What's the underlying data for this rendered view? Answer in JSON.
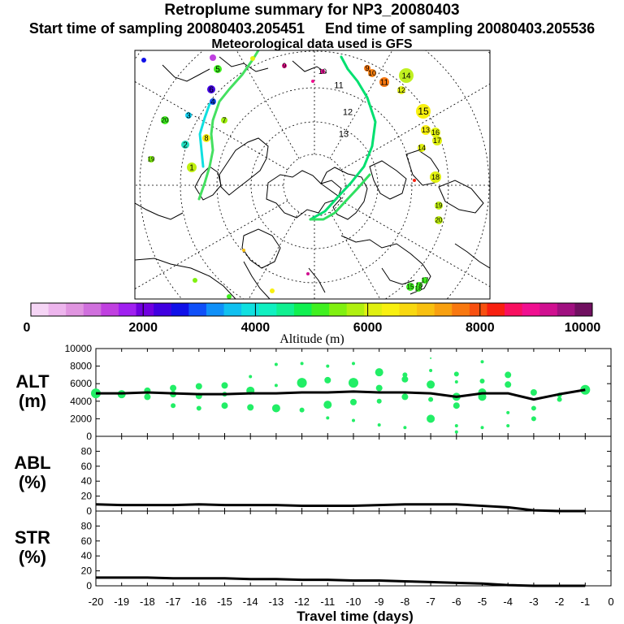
{
  "header": {
    "title": "Retroplume summary for NP3_20080403",
    "start_time": "Start time of sampling 20080403.205451",
    "end_time": "End time of sampling 20080403.205536",
    "met_data": "Meteorological data used is GFS"
  },
  "map": {
    "type": "north-polar-stereographic",
    "day_labels": [
      {
        "label": "1"
      },
      {
        "label": "2"
      },
      {
        "label": "3"
      },
      {
        "label": "4"
      },
      {
        "label": "5"
      },
      {
        "label": "6"
      },
      {
        "label": "7"
      },
      {
        "label": "8"
      },
      {
        "label": "9"
      },
      {
        "label": "10"
      },
      {
        "label": "11"
      },
      {
        "label": "12"
      },
      {
        "label": "13"
      },
      {
        "label": "14"
      },
      {
        "label": "15"
      },
      {
        "label": "16"
      },
      {
        "label": "17"
      },
      {
        "label": "18"
      },
      {
        "label": "19"
      },
      {
        "label": "20"
      },
      {
        "label": "9"
      },
      {
        "label": "10"
      },
      {
        "label": "11"
      },
      {
        "label": "12"
      },
      {
        "label": "13"
      },
      {
        "label": "14"
      },
      {
        "label": "15"
      },
      {
        "label": "16"
      },
      {
        "label": "17"
      },
      {
        "label": "18"
      },
      {
        "label": "19"
      },
      {
        "label": "20"
      }
    ],
    "plume_colors": {
      "track": "#44e060",
      "center_track": "#00e070"
    }
  },
  "colorbar": {
    "label": "Altitude (m)",
    "ticks": [
      "0",
      "2000",
      "4000",
      "6000",
      "8000",
      "10000"
    ],
    "min": 0,
    "max": 10000,
    "colors": [
      "#f5d5f5",
      "#edb5ed",
      "#e095e0",
      "#d070dd",
      "#c040e0",
      "#a020f0",
      "#7000e0",
      "#4000e0",
      "#1010e8",
      "#1050f8",
      "#1090f8",
      "#10c0f0",
      "#10e0e0",
      "#10f0c0",
      "#10f090",
      "#10f050",
      "#40f020",
      "#80f010",
      "#b0f010",
      "#e0f010",
      "#f8f010",
      "#f8d810",
      "#f8c010",
      "#f8a010",
      "#f87810",
      "#f85010",
      "#f82010",
      "#f81060",
      "#f01090",
      "#d01090",
      "#a01080",
      "#701060"
    ]
  },
  "chart_data": [
    {
      "type": "line",
      "panel": "altitude",
      "ylabel": "ALT\n(m)",
      "ylabel_lines": [
        "ALT",
        "(m)"
      ],
      "yticks": [
        "0",
        "2000",
        "4000",
        "6000",
        "8000",
        "10000"
      ],
      "ylim": [
        0,
        10000
      ],
      "xlim": [
        -20,
        0
      ],
      "x": [
        -20,
        -19,
        -18,
        -17,
        -16,
        -15,
        -14,
        -13,
        -12,
        -11,
        -10,
        -9,
        -8,
        -7,
        -6,
        -5,
        -4,
        -3,
        -2,
        -1
      ],
      "series": [
        {
          "name": "mean altitude",
          "values": [
            4900,
            4900,
            5000,
            4900,
            4800,
            4800,
            4900,
            4900,
            5000,
            5000,
            5100,
            5000,
            5000,
            4900,
            4500,
            4900,
            4900,
            4200,
            4800,
            5300
          ]
        }
      ],
      "scatter": [
        {
          "x": -20,
          "y": 4900,
          "s": 6
        },
        {
          "x": -19,
          "y": 4800,
          "s": 5
        },
        {
          "x": -18,
          "y": 5200,
          "s": 4
        },
        {
          "x": -18,
          "y": 4500,
          "s": 4
        },
        {
          "x": -17,
          "y": 5500,
          "s": 4
        },
        {
          "x": -17,
          "y": 4800,
          "s": 4
        },
        {
          "x": -17,
          "y": 3500,
          "s": 3
        },
        {
          "x": -16,
          "y": 5700,
          "s": 4
        },
        {
          "x": -16,
          "y": 4600,
          "s": 4
        },
        {
          "x": -16,
          "y": 3200,
          "s": 3
        },
        {
          "x": -15,
          "y": 5800,
          "s": 4
        },
        {
          "x": -15,
          "y": 4800,
          "s": 3
        },
        {
          "x": -15,
          "y": 3500,
          "s": 4
        },
        {
          "x": -14,
          "y": 6800,
          "s": 2
        },
        {
          "x": -14,
          "y": 5200,
          "s": 5
        },
        {
          "x": -14,
          "y": 3300,
          "s": 4
        },
        {
          "x": -13,
          "y": 8200,
          "s": 2
        },
        {
          "x": -13,
          "y": 5800,
          "s": 2
        },
        {
          "x": -13,
          "y": 3200,
          "s": 5
        },
        {
          "x": -12,
          "y": 8300,
          "s": 2
        },
        {
          "x": -12,
          "y": 6100,
          "s": 6
        },
        {
          "x": -12,
          "y": 3000,
          "s": 3
        },
        {
          "x": -11,
          "y": 8000,
          "s": 2
        },
        {
          "x": -11,
          "y": 6400,
          "s": 4
        },
        {
          "x": -11,
          "y": 3600,
          "s": 5
        },
        {
          "x": -11,
          "y": 2100,
          "s": 2
        },
        {
          "x": -10,
          "y": 8300,
          "s": 2
        },
        {
          "x": -10,
          "y": 6100,
          "s": 6
        },
        {
          "x": -10,
          "y": 3900,
          "s": 4
        },
        {
          "x": -10,
          "y": 1800,
          "s": 2
        },
        {
          "x": -9,
          "y": 7300,
          "s": 5
        },
        {
          "x": -9,
          "y": 5500,
          "s": 4
        },
        {
          "x": -9,
          "y": 4000,
          "s": 3
        },
        {
          "x": -9,
          "y": 1300,
          "s": 2
        },
        {
          "x": -8,
          "y": 7000,
          "s": 3
        },
        {
          "x": -8,
          "y": 6500,
          "s": 4
        },
        {
          "x": -8,
          "y": 4500,
          "s": 4
        },
        {
          "x": -8,
          "y": 1000,
          "s": 2
        },
        {
          "x": -7,
          "y": 8900,
          "s": 1
        },
        {
          "x": -7,
          "y": 7500,
          "s": 2
        },
        {
          "x": -7,
          "y": 5900,
          "s": 5
        },
        {
          "x": -7,
          "y": 4200,
          "s": 3
        },
        {
          "x": -7,
          "y": 2000,
          "s": 5
        },
        {
          "x": -6,
          "y": 7100,
          "s": 3
        },
        {
          "x": -6,
          "y": 6200,
          "s": 2
        },
        {
          "x": -6,
          "y": 4500,
          "s": 5
        },
        {
          "x": -6,
          "y": 3500,
          "s": 4
        },
        {
          "x": -6,
          "y": 1200,
          "s": 2
        },
        {
          "x": -6,
          "y": 500,
          "s": 2
        },
        {
          "x": -5,
          "y": 8500,
          "s": 2
        },
        {
          "x": -5,
          "y": 6300,
          "s": 3
        },
        {
          "x": -5,
          "y": 5000,
          "s": 5
        },
        {
          "x": -5,
          "y": 4500,
          "s": 5
        },
        {
          "x": -5,
          "y": 1000,
          "s": 2
        },
        {
          "x": -4,
          "y": 7000,
          "s": 4
        },
        {
          "x": -4,
          "y": 5900,
          "s": 4
        },
        {
          "x": -4,
          "y": 2700,
          "s": 2
        },
        {
          "x": -4,
          "y": 1200,
          "s": 2
        },
        {
          "x": -3,
          "y": 5000,
          "s": 4
        },
        {
          "x": -3,
          "y": 3200,
          "s": 3
        },
        {
          "x": -3,
          "y": 2000,
          "s": 3
        },
        {
          "x": -2,
          "y": 4700,
          "s": 3
        },
        {
          "x": -2,
          "y": 4200,
          "s": 3
        },
        {
          "x": -1,
          "y": 5300,
          "s": 6
        }
      ]
    },
    {
      "type": "line",
      "panel": "abl",
      "ylabel": "ABL\n(%)",
      "ylabel_lines": [
        "ABL",
        "(%)"
      ],
      "yticks": [
        "0",
        "20",
        "40",
        "60",
        "80"
      ],
      "ylim": [
        0,
        100
      ],
      "xlim": [
        -20,
        0
      ],
      "x": [
        -20,
        -19,
        -18,
        -17,
        -16,
        -15,
        -14,
        -13,
        -12,
        -11,
        -10,
        -9,
        -8,
        -7,
        -6,
        -5,
        -4,
        -3,
        -2,
        -1
      ],
      "series": [
        {
          "name": "ABL",
          "values": [
            9,
            8,
            8,
            8,
            9,
            8,
            8,
            8,
            7,
            7,
            7,
            8,
            9,
            9,
            9,
            7,
            5,
            1,
            0,
            0
          ]
        }
      ]
    },
    {
      "type": "line",
      "panel": "str",
      "ylabel": "STR\n(%)",
      "ylabel_lines": [
        "STR",
        "(%)"
      ],
      "yticks": [
        "0",
        "20",
        "40",
        "60",
        "80"
      ],
      "ylim": [
        0,
        100
      ],
      "xlim": [
        -20,
        0
      ],
      "x": [
        -20,
        -19,
        -18,
        -17,
        -16,
        -15,
        -14,
        -13,
        -12,
        -11,
        -10,
        -9,
        -8,
        -7,
        -6,
        -5,
        -4,
        -3,
        -2,
        -1
      ],
      "series": [
        {
          "name": "STR",
          "values": [
            11,
            11,
            11,
            10,
            10,
            10,
            9,
            9,
            8,
            8,
            7,
            7,
            6,
            5,
            4,
            3,
            1,
            0,
            0,
            0
          ]
        }
      ],
      "xlabel": "Travel time (days)",
      "xticks": [
        "-20",
        "-19",
        "-18",
        "-17",
        "-16",
        "-15",
        "-14",
        "-13",
        "-12",
        "-11",
        "-10",
        "-9",
        "-8",
        "-7",
        "-6",
        "-5",
        "-4",
        "-3",
        "-2",
        "-1",
        "0"
      ]
    }
  ]
}
